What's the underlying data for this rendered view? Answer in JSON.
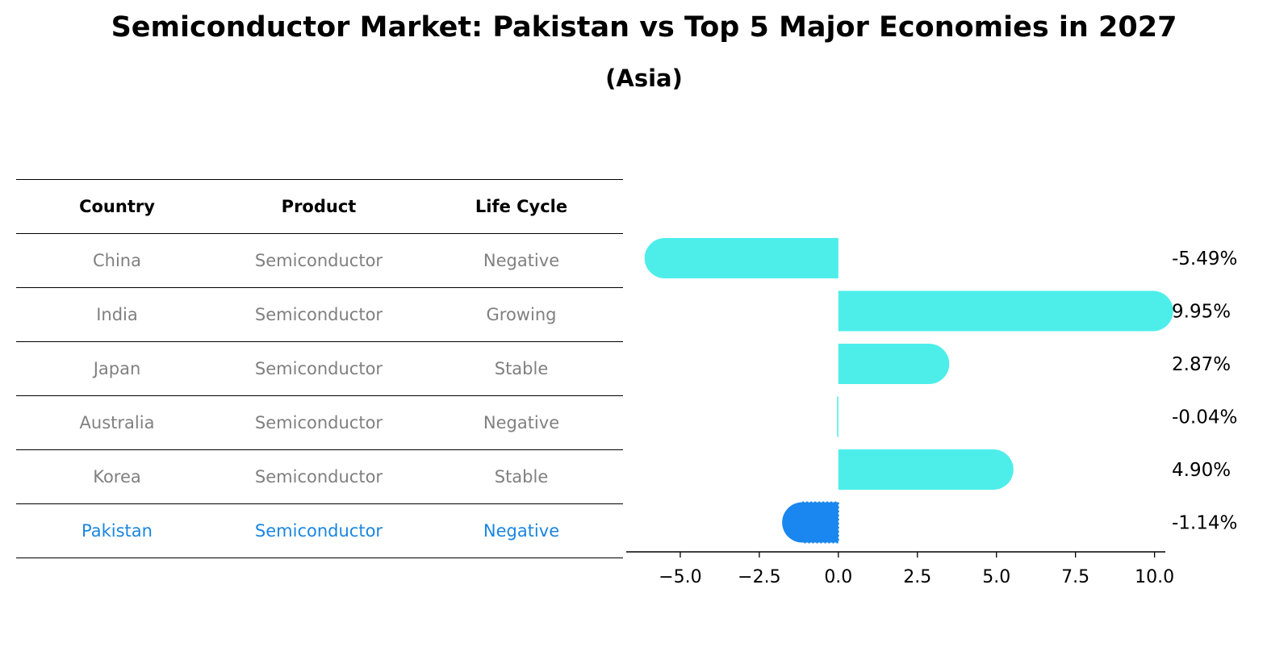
{
  "title": "Semiconductor Market: Pakistan vs Top 5 Major Economies in 2027",
  "subtitle": "(Asia)",
  "table": {
    "headers": [
      "Country",
      "Product",
      "Life Cycle"
    ],
    "rows": [
      [
        "China",
        "Semiconductor",
        "Negative"
      ],
      [
        "India",
        "Semiconductor",
        "Growing"
      ],
      [
        "Japan",
        "Semiconductor",
        "Stable"
      ],
      [
        "Australia",
        "Semiconductor",
        "Negative"
      ],
      [
        "Korea",
        "Semiconductor",
        "Stable"
      ],
      [
        "Pakistan",
        "Semiconductor",
        "Negative"
      ]
    ]
  },
  "chart_data": {
    "type": "bar",
    "orientation": "horizontal",
    "categories": [
      "China",
      "India",
      "Japan",
      "Australia",
      "Korea",
      "Pakistan"
    ],
    "values": [
      -5.49,
      9.95,
      2.87,
      -0.04,
      4.9,
      -1.14
    ],
    "value_labels": [
      "-5.49%",
      "9.95%",
      "2.87%",
      "-0.04%",
      "4.90%",
      "-1.14%"
    ],
    "xlim": [
      -6.3,
      10.75
    ],
    "xticks": [
      -5.0,
      -2.5,
      0.0,
      2.5,
      5.0,
      7.5,
      10.0
    ],
    "xtick_labels": [
      "−5.0",
      "−2.5",
      "0.0",
      "2.5",
      "5.0",
      "7.5",
      "10.0"
    ],
    "highlight": "Pakistan",
    "colors": {
      "default": "#4deeea",
      "highlight": "#1a86f0"
    }
  }
}
